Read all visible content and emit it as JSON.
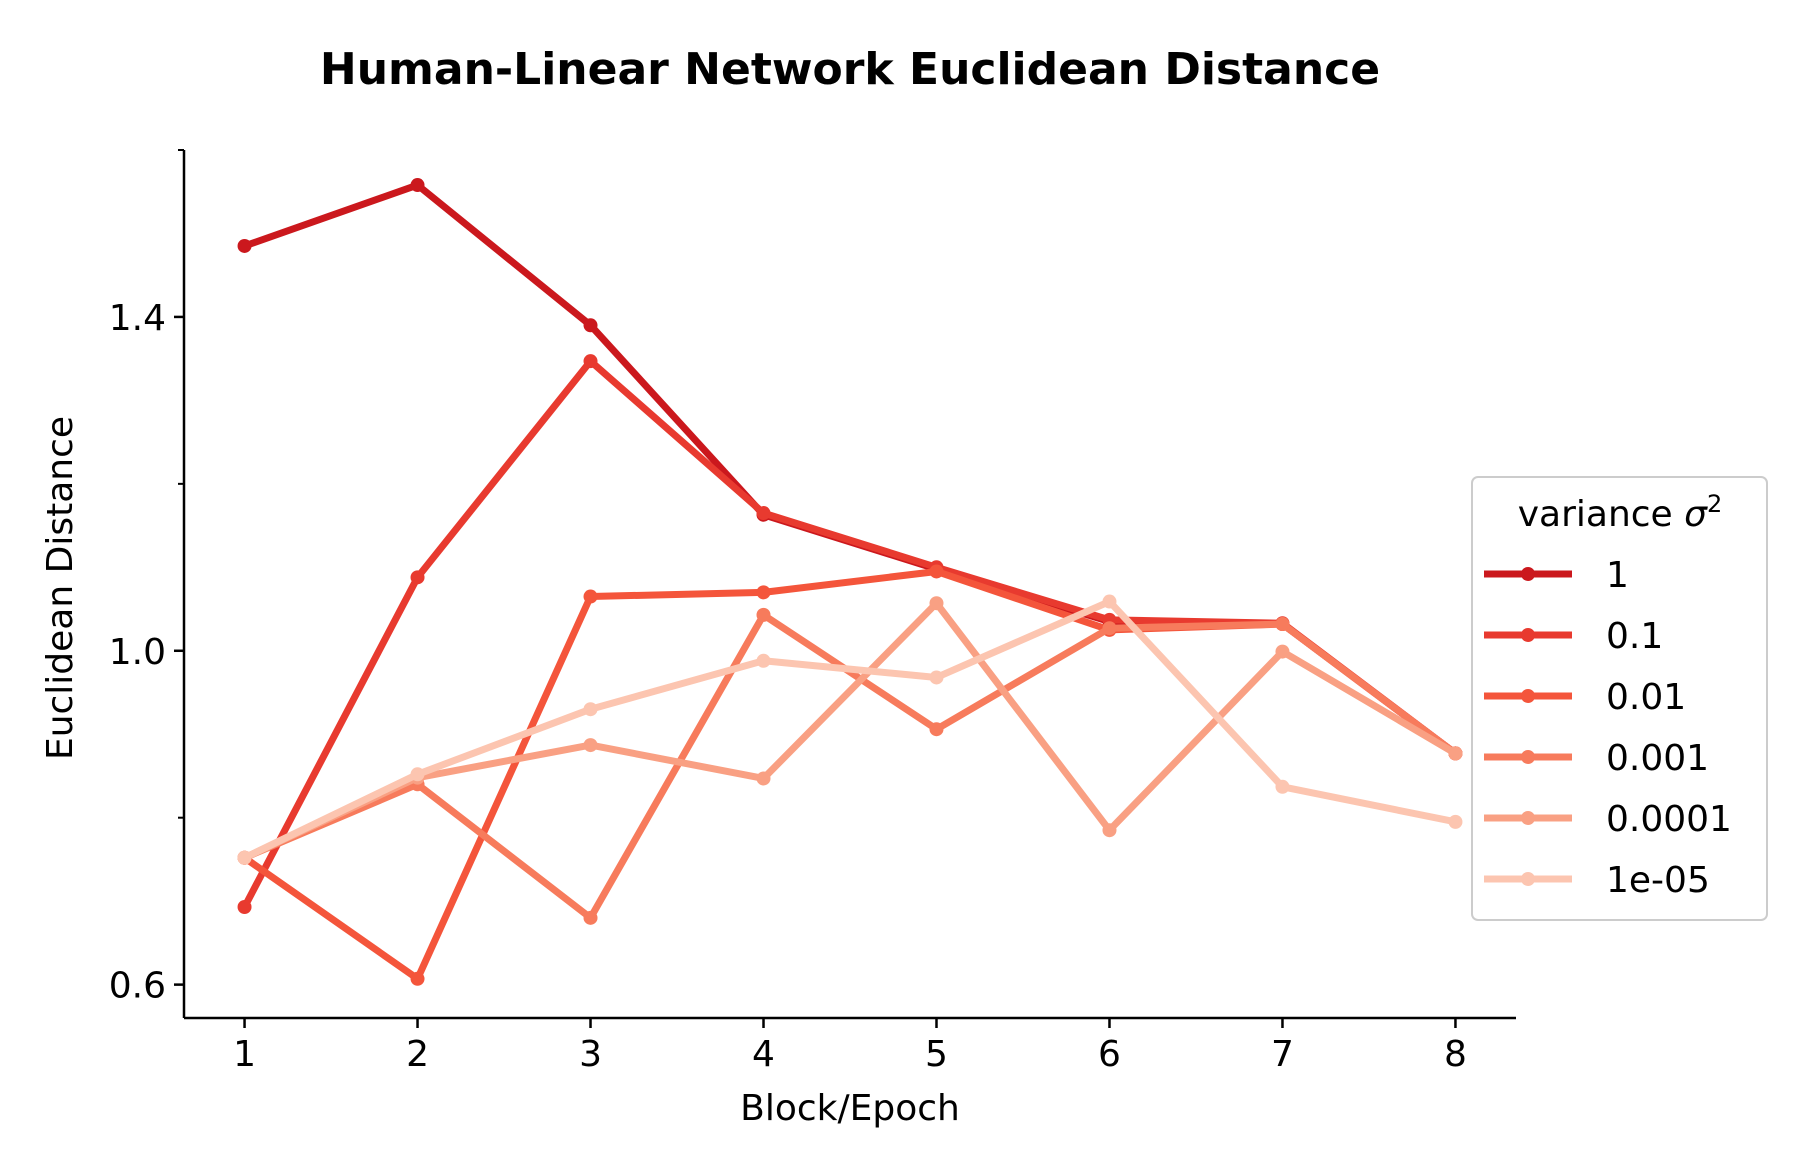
{
  "chart_data": {
    "type": "line",
    "title": "Human-Linear Network Euclidean Distance",
    "xlabel": "Block/Epoch",
    "ylabel": "Euclidean Distance",
    "x": [
      1,
      2,
      3,
      4,
      5,
      6,
      7,
      8
    ],
    "xlim": [
      0.65,
      8.35
    ],
    "ylim": [
      0.56,
      1.6
    ],
    "xticks": [
      1,
      2,
      3,
      4,
      5,
      6,
      7,
      8
    ],
    "xtick_labels": [
      "1",
      "2",
      "3",
      "4",
      "5",
      "6",
      "7",
      "8"
    ],
    "yticks_major": [
      0.6,
      1.0,
      1.4
    ],
    "ytick_labels": [
      "0.6",
      "1.0",
      "1.4"
    ],
    "yticks_minor": [
      0.8,
      1.2,
      1.6
    ],
    "grid": false,
    "legend": {
      "title_prefix": "variance ",
      "title_symbol": "σ",
      "title_exponent": "2",
      "placement": "right"
    },
    "series": [
      {
        "name": "1",
        "color": "#cb181d",
        "values": [
          1.485,
          1.558,
          1.39,
          1.163,
          1.098,
          1.035,
          1.032,
          0.877
        ]
      },
      {
        "name": "0.1",
        "color": "#e83a2f",
        "values": [
          0.693,
          1.088,
          1.347,
          1.165,
          1.1,
          1.037,
          1.033,
          0.877
        ]
      },
      {
        "name": "0.01",
        "color": "#f4553b",
        "values": [
          0.752,
          0.607,
          1.065,
          1.07,
          1.095,
          1.025,
          1.032,
          0.877
        ]
      },
      {
        "name": "0.001",
        "color": "#f77b5c",
        "values": [
          0.752,
          0.84,
          0.68,
          1.043,
          0.906,
          1.027,
          1.032,
          0.877
        ]
      },
      {
        "name": "0.0001",
        "color": "#f9a083",
        "values": [
          0.752,
          0.848,
          0.887,
          0.847,
          1.057,
          0.785,
          0.999,
          0.877
        ]
      },
      {
        "name": "1e-05",
        "color": "#fcc5b0",
        "values": [
          0.752,
          0.852,
          0.93,
          0.988,
          0.968,
          1.059,
          0.837,
          0.795
        ]
      }
    ]
  }
}
